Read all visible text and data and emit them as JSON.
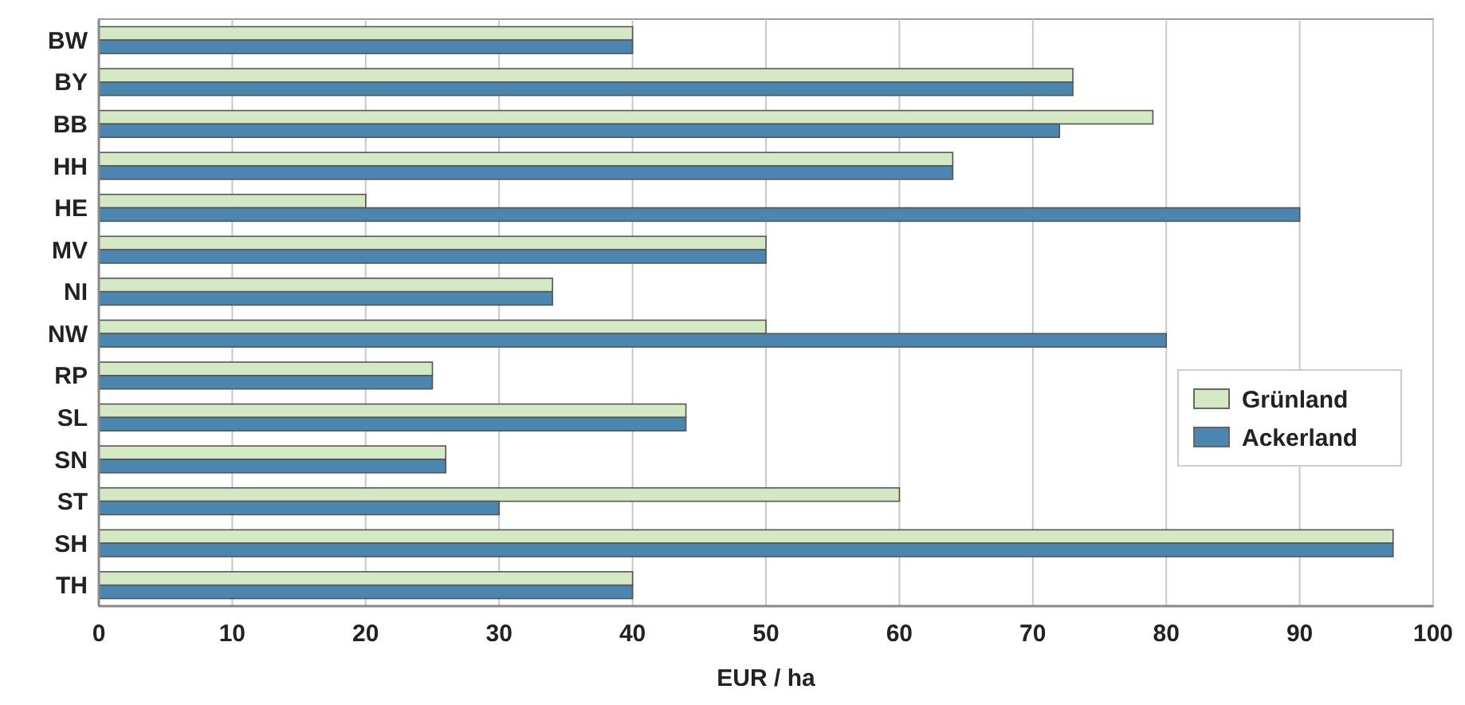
{
  "chart_data": {
    "type": "bar",
    "orientation": "horizontal",
    "xlabel": "EUR / ha",
    "categories": [
      "BW",
      "BY",
      "BB",
      "HH",
      "HE",
      "MV",
      "NI",
      "NW",
      "RP",
      "SL",
      "SN",
      "ST",
      "SH",
      "TH"
    ],
    "series": [
      {
        "name": "Grünland",
        "color": "#d5e8c4",
        "values": [
          40,
          73,
          79,
          64,
          20,
          50,
          34,
          50,
          25,
          44,
          26,
          60,
          97,
          40
        ]
      },
      {
        "name": "Ackerland",
        "color": "#4a86b0",
        "values": [
          40,
          73,
          72,
          64,
          90,
          50,
          34,
          80,
          25,
          44,
          26,
          30,
          97,
          40
        ]
      }
    ],
    "xlim": [
      0,
      100
    ],
    "xticks": [
      0,
      10,
      20,
      30,
      40,
      50,
      60,
      70,
      80,
      90,
      100
    ],
    "grid": "x",
    "legend": "right"
  }
}
